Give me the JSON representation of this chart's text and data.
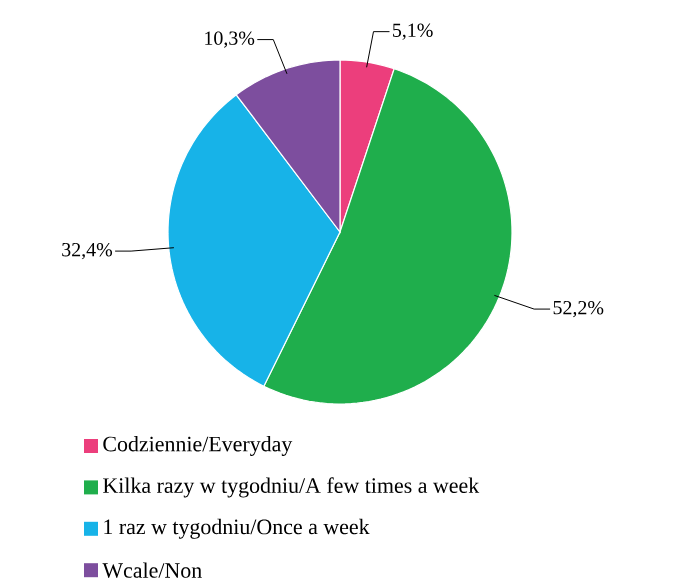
{
  "chart_data": {
    "type": "pie",
    "categories": [
      "Codziennie/Everyday",
      "Kilka razy w tygodniu/A few times a week",
      "1 raz w tygodniu/Once a week",
      "Wcale/Non"
    ],
    "values": [
      5.1,
      52.2,
      32.4,
      10.3
    ],
    "value_labels": [
      "5,1%",
      "52,2%",
      "32,4%",
      "10,3%"
    ],
    "colors": [
      "#ec3e7c",
      "#1fae4c",
      "#17b3e8",
      "#7d4e9e"
    ],
    "legend": "bottom"
  }
}
